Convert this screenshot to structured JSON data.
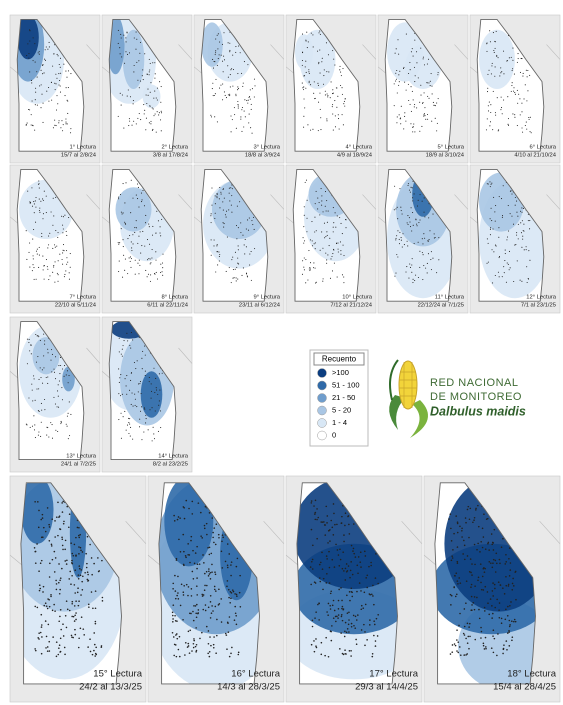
{
  "panels": [
    {
      "title": "1° Lectura",
      "dates": "15/7 al 2/8/24"
    },
    {
      "title": "2° Lectura",
      "dates": "3/8 al 17/8/24"
    },
    {
      "title": "3° Lectura",
      "dates": "18/8 al 3/9/24"
    },
    {
      "title": "4° Lectura",
      "dates": "4/9 al 18/9/24"
    },
    {
      "title": "5° Lectura",
      "dates": "18/9 al 3/10/24"
    },
    {
      "title": "6° Lectura",
      "dates": "4/10 al 21/10/24"
    },
    {
      "title": "7° Lectura",
      "dates": "22/10 al 5/11/24"
    },
    {
      "title": "8° Lectura",
      "dates": "6/11 al 22/11/24"
    },
    {
      "title": "9° Lectura",
      "dates": "23/11 al 6/12/24"
    },
    {
      "title": "10° Lectura",
      "dates": "7/12 al 21/12/24"
    },
    {
      "title": "11° Lectura",
      "dates": "22/12/24 al 7/1/25"
    },
    {
      "title": "12° Lectura",
      "dates": "7/1 al 23/1/25"
    },
    {
      "title": "13° Lectura",
      "dates": "24/1 al 7/2/25"
    },
    {
      "title": "14° Lectura",
      "dates": "8/2 al 23/2/25"
    },
    {
      "title": "15° Lectura",
      "dates": "24/2 al 13/3/25"
    },
    {
      "title": "16° Lectura",
      "dates": "14/3 al 28/3/25"
    },
    {
      "title": "17° Lectura",
      "dates": "29/3 al 14/4/25"
    },
    {
      "title": "18° Lectura",
      "dates": "15/4 al 28/4/25"
    }
  ],
  "legend": {
    "title": "Recuento",
    "items": [
      ">100",
      "51 - 100",
      "21 - 50",
      "5 - 20",
      "1 - 4",
      "0"
    ]
  },
  "logo": {
    "line1": "RED NACIONAL",
    "line2": "DE MONITOREO",
    "species": "Dalbulus maidis"
  }
}
